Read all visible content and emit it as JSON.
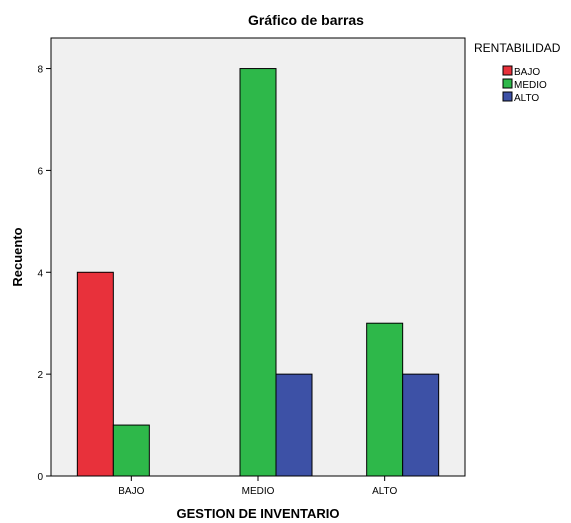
{
  "chart_data": {
    "type": "bar",
    "title": "Gráfico de barras",
    "xlabel": "GESTION DE INVENTARIO",
    "ylabel": "Recuento",
    "categories": [
      "BAJO",
      "MEDIO",
      "ALTO"
    ],
    "yticks": [
      0,
      2,
      4,
      6,
      8
    ],
    "ylim": [
      0,
      8.6
    ],
    "grid": false,
    "legend": {
      "title": "RENTABILIDAD",
      "placement": "right"
    },
    "series": [
      {
        "name": "BAJO",
        "color": "#e8313b",
        "values": [
          4,
          0,
          0
        ]
      },
      {
        "name": "MEDIO",
        "color": "#2eb84a",
        "values": [
          1,
          8,
          3
        ]
      },
      {
        "name": "ALTO",
        "color": "#3d51a6",
        "values": [
          0,
          2,
          2
        ]
      }
    ]
  }
}
